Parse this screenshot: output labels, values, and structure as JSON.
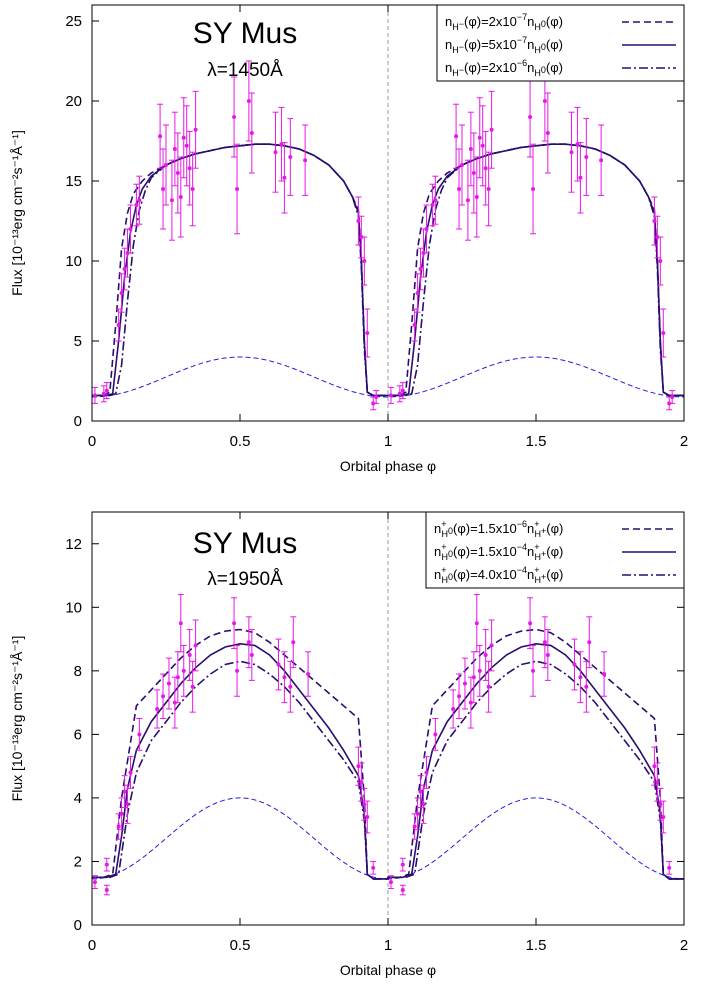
{
  "colors": {
    "model": "#2a0d6e",
    "data": "#e619e6",
    "reference": "#2222dd",
    "divider": "#999999"
  },
  "chart_data": [
    {
      "type": "line",
      "id": "top",
      "title": "SY Mus",
      "subtitle": "λ=1450Å",
      "xlabel": "Orbital phase φ",
      "ylabel": "Flux [10⁻¹³erg cm⁻²s⁻¹Å⁻¹]",
      "xlim": [
        0,
        2
      ],
      "ylim": [
        0,
        26
      ],
      "xticks": [
        0,
        0.5,
        1,
        1.5,
        2
      ],
      "xtick_labels": [
        "0",
        "0.5",
        "1",
        "1.5",
        "2"
      ],
      "yticks": [
        0,
        5,
        10,
        15,
        20,
        25
      ],
      "ytick_labels": [
        "0",
        "5",
        "10",
        "15",
        "20",
        "25"
      ],
      "legend_position": "top-right",
      "legend": [
        {
          "dash": "dashed",
          "base": "n",
          "sub": "H",
          "subsup": "−",
          "mid": "(φ)=2x10",
          "exp": "−7",
          "base2": "n",
          "sub2": "H",
          "sub2sup": "0",
          "tail": "(φ)"
        },
        {
          "dash": "solid",
          "base": "n",
          "sub": "H",
          "subsup": "−",
          "mid": "(φ)=5x10",
          "exp": "−7",
          "base2": "n",
          "sub2": "H",
          "sub2sup": "0",
          "tail": "(φ)"
        },
        {
          "dash": "dashdot",
          "base": "n",
          "sub": "H",
          "subsup": "−",
          "mid": "(φ)=2x10",
          "exp": "−6",
          "base2": "n",
          "sub2": "H",
          "sub2sup": "0",
          "tail": "(φ)"
        }
      ],
      "series": [
        {
          "style": "dashed",
          "x": [
            0,
            0.04,
            0.06,
            0.08,
            0.1,
            0.12,
            0.14,
            0.17,
            0.2,
            0.25,
            0.3,
            0.35,
            0.4,
            0.45,
            0.5,
            0.55,
            0.6,
            0.65,
            0.7,
            0.75,
            0.8,
            0.85,
            0.88,
            0.9,
            0.91,
            0.92,
            0.93,
            0.95,
            1.0
          ],
          "y": [
            1.6,
            1.6,
            1.8,
            6.0,
            10.8,
            13.0,
            14.2,
            15.0,
            15.5,
            16.0,
            16.4,
            16.7,
            16.9,
            17.1,
            17.2,
            17.3,
            17.3,
            17.2,
            17.0,
            16.6,
            16.0,
            15.0,
            14.0,
            13.2,
            10.0,
            5.0,
            1.8,
            1.6,
            1.6
          ]
        },
        {
          "style": "solid",
          "x": [
            0,
            0.05,
            0.07,
            0.09,
            0.11,
            0.13,
            0.15,
            0.17,
            0.2,
            0.25,
            0.3,
            0.35,
            0.4,
            0.45,
            0.5,
            0.55,
            0.6,
            0.65,
            0.7,
            0.75,
            0.8,
            0.85,
            0.88,
            0.9,
            0.91,
            0.92,
            0.93,
            0.95,
            1.0
          ],
          "y": [
            1.6,
            1.6,
            1.7,
            5.0,
            9.0,
            11.8,
            13.5,
            14.5,
            15.3,
            16.0,
            16.4,
            16.7,
            16.9,
            17.1,
            17.2,
            17.3,
            17.3,
            17.2,
            17.0,
            16.6,
            16.0,
            15.0,
            14.0,
            13.0,
            10.0,
            5.0,
            1.8,
            1.6,
            1.6
          ]
        },
        {
          "style": "dashdot",
          "x": [
            0,
            0.06,
            0.08,
            0.1,
            0.12,
            0.14,
            0.16,
            0.18,
            0.2,
            0.25,
            0.3,
            0.35,
            0.4,
            0.45,
            0.5,
            0.55,
            0.6,
            0.65,
            0.7,
            0.75,
            0.8,
            0.85,
            0.88,
            0.9,
            0.91,
            0.92,
            0.93,
            0.95,
            1.0
          ],
          "y": [
            1.6,
            1.6,
            1.7,
            3.5,
            7.5,
            11.0,
            13.2,
            14.4,
            15.2,
            16.0,
            16.4,
            16.7,
            16.9,
            17.1,
            17.2,
            17.3,
            17.3,
            17.2,
            17.0,
            16.6,
            16.0,
            15.0,
            14.0,
            12.8,
            9.5,
            4.5,
            1.8,
            1.6,
            1.6
          ]
        }
      ],
      "reference": {
        "min": 1.5,
        "max": 4.0
      },
      "points": [
        [
          0.01,
          1.6,
          0.5
        ],
        [
          0.04,
          1.7,
          0.5
        ],
        [
          0.05,
          1.9,
          0.5
        ],
        [
          0.09,
          6.0,
          1.0
        ],
        [
          0.1,
          8.0,
          1.2
        ],
        [
          0.11,
          9.5,
          1.3
        ],
        [
          0.12,
          10.5,
          1.5
        ],
        [
          0.13,
          12.0,
          1.5
        ],
        [
          0.15,
          13.5,
          1.3
        ],
        [
          0.16,
          13.8,
          1.5
        ],
        [
          0.23,
          17.8,
          2.0
        ],
        [
          0.24,
          14.5,
          2.5
        ],
        [
          0.25,
          16.0,
          2.5
        ],
        [
          0.27,
          13.8,
          2.5
        ],
        [
          0.28,
          17.0,
          2.3
        ],
        [
          0.29,
          15.5,
          2.5
        ],
        [
          0.3,
          14.0,
          2.5
        ],
        [
          0.31,
          17.7,
          2.5
        ],
        [
          0.32,
          17.2,
          2.5
        ],
        [
          0.33,
          15.8,
          2.3
        ],
        [
          0.34,
          14.5,
          2.3
        ],
        [
          0.35,
          18.2,
          2.4
        ],
        [
          0.48,
          19.0,
          2.5
        ],
        [
          0.49,
          14.5,
          2.8
        ],
        [
          0.53,
          20.0,
          2.5
        ],
        [
          0.54,
          18.0,
          2.5
        ],
        [
          0.62,
          16.8,
          2.5
        ],
        [
          0.64,
          17.3,
          2.3
        ],
        [
          0.65,
          15.2,
          2.2
        ],
        [
          0.67,
          16.5,
          2.4
        ],
        [
          0.72,
          16.3,
          2.2
        ],
        [
          0.9,
          12.5,
          1.5
        ],
        [
          0.91,
          11.5,
          1.3
        ],
        [
          0.92,
          10.0,
          1.5
        ],
        [
          0.93,
          5.5,
          1.5
        ],
        [
          0.95,
          1.1,
          0.4
        ],
        [
          0.96,
          1.5,
          0.4
        ]
      ]
    },
    {
      "type": "line",
      "id": "bottom",
      "title": "SY Mus",
      "subtitle": "λ=1950Å",
      "xlabel": "Orbital phase φ",
      "ylabel": "Flux [10⁻¹³erg cm⁻²s⁻¹Å⁻¹]",
      "xlim": [
        0,
        2
      ],
      "ylim": [
        0,
        13
      ],
      "xticks": [
        0,
        0.5,
        1,
        1.5,
        2
      ],
      "xtick_labels": [
        "0",
        "0.5",
        "1",
        "1.5",
        "2"
      ],
      "yticks": [
        0,
        2,
        4,
        6,
        8,
        10,
        12
      ],
      "ytick_labels": [
        "0",
        "2",
        "4",
        "6",
        "8",
        "10",
        "12"
      ],
      "legend_position": "top-right",
      "legend": [
        {
          "dash": "dashed",
          "base": "n",
          "sub": "H",
          "subsup": "0",
          "sup": "+",
          "mid": "(φ)=1.5x10",
          "exp": "−6",
          "base2": "n",
          "sub2": "H",
          "sub2sup": "+",
          "sup2": "+",
          "tail": "(φ)"
        },
        {
          "dash": "solid",
          "base": "n",
          "sub": "H",
          "subsup": "0",
          "sup": "+",
          "mid": "(φ)=1.5x10",
          "exp": "−4",
          "base2": "n",
          "sub2": "H",
          "sub2sup": "+",
          "sup2": "+",
          "tail": "(φ)"
        },
        {
          "dash": "dashdot",
          "base": "n",
          "sub": "H",
          "subsup": "0",
          "sup": "+",
          "mid": "(φ)=4.0x10",
          "exp": "−4",
          "base2": "n",
          "sub2": "H",
          "sub2sup": "+",
          "sup2": "+",
          "tail": "(φ)"
        }
      ],
      "series": [
        {
          "style": "dashed",
          "x": [
            0,
            0.04,
            0.07,
            0.1,
            0.15,
            0.2,
            0.25,
            0.3,
            0.35,
            0.4,
            0.45,
            0.5,
            0.55,
            0.6,
            0.65,
            0.7,
            0.75,
            0.8,
            0.85,
            0.9,
            0.92,
            0.93,
            0.95,
            1.0
          ],
          "y": [
            1.5,
            1.5,
            1.6,
            4.0,
            6.9,
            7.4,
            7.9,
            8.4,
            8.8,
            9.1,
            9.25,
            9.3,
            9.2,
            8.9,
            8.5,
            8.1,
            7.7,
            7.3,
            6.9,
            6.5,
            4.0,
            1.6,
            1.45,
            1.45
          ]
        },
        {
          "style": "solid",
          "x": [
            0,
            0.05,
            0.08,
            0.1,
            0.12,
            0.15,
            0.2,
            0.25,
            0.3,
            0.35,
            0.4,
            0.45,
            0.5,
            0.55,
            0.6,
            0.65,
            0.7,
            0.75,
            0.8,
            0.85,
            0.9,
            0.92,
            0.93,
            0.95,
            1.0
          ],
          "y": [
            1.5,
            1.5,
            1.6,
            2.8,
            4.3,
            5.5,
            6.4,
            7.0,
            7.6,
            8.1,
            8.5,
            8.75,
            8.85,
            8.8,
            8.5,
            8.0,
            7.4,
            6.8,
            6.2,
            5.5,
            4.7,
            3.5,
            1.6,
            1.45,
            1.45
          ]
        },
        {
          "style": "dashdot",
          "x": [
            0,
            0.06,
            0.09,
            0.12,
            0.15,
            0.2,
            0.25,
            0.3,
            0.35,
            0.4,
            0.45,
            0.5,
            0.55,
            0.6,
            0.65,
            0.7,
            0.75,
            0.8,
            0.85,
            0.9,
            0.92,
            0.93,
            0.95,
            1.0
          ],
          "y": [
            1.5,
            1.5,
            1.6,
            3.5,
            4.8,
            5.8,
            6.4,
            7.0,
            7.5,
            7.9,
            8.2,
            8.3,
            8.2,
            7.9,
            7.5,
            7.0,
            6.4,
            5.8,
            5.2,
            4.5,
            3.3,
            1.6,
            1.45,
            1.45
          ]
        }
      ],
      "reference": {
        "min": 1.45,
        "max": 4.0
      },
      "points": [
        [
          0.01,
          1.35,
          0.2
        ],
        [
          0.05,
          1.9,
          0.2
        ],
        [
          0.05,
          1.1,
          0.15
        ],
        [
          0.09,
          3.1,
          0.4
        ],
        [
          0.1,
          3.5,
          0.5
        ],
        [
          0.11,
          4.2,
          0.5
        ],
        [
          0.12,
          3.8,
          0.6
        ],
        [
          0.13,
          4.8,
          0.5
        ],
        [
          0.16,
          6.0,
          0.5
        ],
        [
          0.22,
          6.8,
          0.6
        ],
        [
          0.24,
          7.2,
          0.7
        ],
        [
          0.26,
          7.6,
          0.8
        ],
        [
          0.28,
          7.0,
          0.8
        ],
        [
          0.29,
          7.8,
          0.8
        ],
        [
          0.3,
          9.5,
          0.9
        ],
        [
          0.31,
          8.0,
          0.8
        ],
        [
          0.33,
          8.5,
          0.8
        ],
        [
          0.34,
          7.5,
          0.8
        ],
        [
          0.35,
          8.8,
          0.8
        ],
        [
          0.48,
          9.5,
          0.8
        ],
        [
          0.49,
          8.0,
          0.8
        ],
        [
          0.53,
          8.9,
          0.8
        ],
        [
          0.54,
          8.5,
          0.8
        ],
        [
          0.63,
          8.2,
          0.8
        ],
        [
          0.65,
          7.8,
          0.8
        ],
        [
          0.67,
          7.5,
          0.8
        ],
        [
          0.68,
          8.9,
          0.8
        ],
        [
          0.73,
          7.9,
          0.7
        ],
        [
          0.9,
          5.0,
          0.6
        ],
        [
          0.91,
          4.5,
          0.6
        ],
        [
          0.92,
          3.8,
          0.5
        ],
        [
          0.93,
          3.4,
          0.5
        ],
        [
          0.95,
          1.8,
          0.2
        ]
      ]
    }
  ]
}
